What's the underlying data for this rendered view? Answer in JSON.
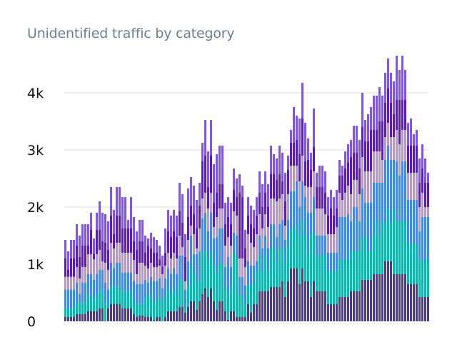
{
  "chart_data": {
    "type": "bar",
    "stacked": true,
    "title": "Unidentified traffic by category",
    "xlabel": "",
    "ylabel": "",
    "ylim": [
      0,
      4700
    ],
    "yticks": [
      0,
      1000,
      2000,
      3000,
      4000
    ],
    "ytick_labels": [
      "0",
      "1k",
      "2k",
      "3k",
      "4k"
    ],
    "grid": "horizontal",
    "legend": "none",
    "series_colors": [
      "#4b3f80",
      "#13b5a8",
      "#4587e6",
      "#b49bc0",
      "#5521b5",
      "#7a5ae0"
    ],
    "values": [
      [
        80,
        150,
        325,
        225,
        325,
        320
      ],
      [
        80,
        150,
        325,
        225,
        125,
        320
      ],
      [
        80,
        150,
        325,
        225,
        325,
        320
      ],
      [
        80,
        150,
        325,
        225,
        325,
        320
      ],
      [
        130,
        200,
        350,
        270,
        375,
        375
      ],
      [
        130,
        200,
        150,
        270,
        375,
        375
      ],
      [
        130,
        200,
        350,
        270,
        375,
        375
      ],
      [
        130,
        200,
        350,
        270,
        375,
        375
      ],
      [
        180,
        275,
        370,
        350,
        150,
        375
      ],
      [
        180,
        275,
        370,
        350,
        425,
        300
      ],
      [
        180,
        200,
        345,
        360,
        90,
        275
      ],
      [
        180,
        275,
        370,
        350,
        425,
        300
      ],
      [
        230,
        300,
        370,
        350,
        350,
        500
      ],
      [
        230,
        300,
        370,
        150,
        350,
        500
      ],
      [
        0,
        305,
        375,
        345,
        350,
        500
      ],
      [
        230,
        75,
        250,
        345,
        350,
        500
      ],
      [
        305,
        300,
        425,
        345,
        475,
        500
      ],
      [
        305,
        300,
        325,
        345,
        250,
        425
      ],
      [
        305,
        300,
        425,
        345,
        475,
        500
      ],
      [
        305,
        300,
        425,
        345,
        475,
        500
      ],
      [
        230,
        300,
        320,
        350,
        425,
        550
      ],
      [
        230,
        300,
        320,
        350,
        425,
        550
      ],
      [
        230,
        300,
        320,
        350,
        425,
        150
      ],
      [
        230,
        300,
        320,
        350,
        425,
        550
      ],
      [
        130,
        225,
        345,
        375,
        325,
        425
      ],
      [
        80,
        225,
        350,
        170,
        425,
        325
      ],
      [
        100,
        205,
        350,
        370,
        375,
        375
      ],
      [
        100,
        205,
        350,
        370,
        375,
        375
      ],
      [
        80,
        325,
        320,
        250,
        225,
        300
      ],
      [
        80,
        375,
        225,
        245,
        400,
        125
      ],
      [
        80,
        375,
        325,
        245,
        250,
        275
      ],
      [
        20,
        310,
        375,
        245,
        250,
        275
      ],
      [
        75,
        300,
        325,
        250,
        250,
        225
      ],
      [
        75,
        350,
        325,
        225,
        110,
        240
      ],
      [
        0,
        350,
        225,
        250,
        135,
        190
      ],
      [
        75,
        350,
        325,
        225,
        225,
        425
      ],
      [
        175,
        400,
        350,
        275,
        375,
        375
      ],
      [
        175,
        300,
        350,
        275,
        375,
        375
      ],
      [
        175,
        400,
        350,
        275,
        375,
        375
      ],
      [
        175,
        300,
        350,
        275,
        375,
        375
      ],
      [
        250,
        475,
        425,
        350,
        425,
        500
      ],
      [
        250,
        475,
        425,
        150,
        425,
        500
      ],
      [
        150,
        75,
        325,
        150,
        425,
        400
      ],
      [
        250,
        375,
        425,
        375,
        400,
        500
      ],
      [
        350,
        650,
        500,
        175,
        350,
        500
      ],
      [
        350,
        500,
        325,
        350,
        350,
        500
      ],
      [
        200,
        475,
        500,
        100,
        350,
        500
      ],
      [
        350,
        375,
        500,
        400,
        400,
        400
      ],
      [
        475,
        750,
        575,
        350,
        650,
        325
      ],
      [
        575,
        650,
        675,
        350,
        650,
        625
      ],
      [
        425,
        650,
        500,
        400,
        375,
        625
      ],
      [
        575,
        650,
        675,
        350,
        650,
        625
      ],
      [
        350,
        625,
        475,
        200,
        425,
        675
      ],
      [
        200,
        650,
        625,
        350,
        425,
        675
      ],
      [
        350,
        650,
        625,
        350,
        425,
        675
      ],
      [
        350,
        650,
        625,
        350,
        425,
        675
      ],
      [
        175,
        400,
        375,
        375,
        375,
        375
      ],
      [
        25,
        425,
        675,
        350,
        350,
        350
      ],
      [
        175,
        425,
        350,
        375,
        375,
        375
      ],
      [
        175,
        1025,
        350,
        375,
        375,
        375
      ],
      [
        75,
        1050,
        375,
        350,
        325,
        325
      ],
      [
        75,
        375,
        325,
        325,
        1150,
        325
      ],
      [
        75,
        375,
        325,
        325,
        1075,
        200
      ],
      [
        75,
        225,
        325,
        325,
        325,
        325
      ],
      [
        300,
        325,
        425,
        475,
        325,
        325
      ],
      [
        150,
        500,
        325,
        400,
        325,
        325
      ],
      [
        300,
        350,
        325,
        325,
        325,
        325
      ],
      [
        300,
        575,
        175,
        475,
        325,
        325
      ],
      [
        525,
        625,
        350,
        375,
        375,
        375
      ],
      [
        525,
        350,
        400,
        350,
        375,
        400
      ],
      [
        525,
        625,
        350,
        375,
        375,
        375
      ],
      [
        525,
        350,
        400,
        375,
        350,
        400
      ],
      [
        600,
        675,
        425,
        450,
        425,
        500
      ],
      [
        600,
        675,
        425,
        450,
        425,
        350
      ],
      [
        600,
        450,
        425,
        625,
        375,
        375
      ],
      [
        600,
        675,
        425,
        450,
        425,
        500
      ],
      [
        700,
        575,
        500,
        450,
        225,
        500
      ],
      [
        425,
        575,
        425,
        250,
        425,
        500
      ],
      [
        700,
        600,
        475,
        450,
        425,
        250
      ],
      [
        925,
        675,
        675,
        450,
        400,
        225
      ],
      [
        925,
        675,
        675,
        450,
        400,
        625
      ],
      [
        925,
        750,
        775,
        275,
        450,
        425
      ],
      [
        650,
        850,
        500,
        450,
        475,
        625
      ],
      [
        925,
        850,
        675,
        450,
        650,
        625
      ],
      [
        700,
        800,
        675,
        200,
        425,
        675
      ],
      [
        700,
        475,
        725,
        450,
        475,
        375
      ],
      [
        425,
        1100,
        375,
        450,
        300,
        300
      ],
      [
        700,
        850,
        625,
        450,
        425,
        675
      ],
      [
        525,
        625,
        350,
        475,
        375,
        250
      ],
      [
        525,
        625,
        350,
        475,
        375,
        375
      ],
      [
        525,
        625,
        350,
        475,
        375,
        375
      ],
      [
        525,
        625,
        350,
        375,
        375,
        375
      ],
      [
        300,
        575,
        325,
        325,
        325,
        325
      ],
      [
        300,
        575,
        325,
        325,
        450,
        325
      ],
      [
        300,
        575,
        325,
        325,
        325,
        325
      ],
      [
        300,
        575,
        325,
        450,
        325,
        325
      ],
      [
        425,
        650,
        750,
        425,
        300,
        275
      ],
      [
        425,
        650,
        750,
        300,
        425,
        175
      ],
      [
        425,
        650,
        750,
        425,
        425,
        300
      ],
      [
        425,
        650,
        800,
        500,
        400,
        325
      ],
      [
        525,
        700,
        525,
        475,
        650,
        300
      ],
      [
        525,
        700,
        775,
        475,
        475,
        475
      ],
      [
        525,
        700,
        775,
        475,
        475,
        475
      ],
      [
        525,
        700,
        525,
        475,
        450,
        500
      ],
      [
        725,
        750,
        850,
        550,
        525,
        600
      ],
      [
        725,
        750,
        600,
        550,
        525,
        375
      ],
      [
        725,
        500,
        850,
        550,
        525,
        475
      ],
      [
        725,
        500,
        850,
        550,
        725,
        400
      ],
      [
        825,
        675,
        925,
        550,
        375,
        600
      ],
      [
        825,
        925,
        675,
        550,
        375,
        600
      ],
      [
        825,
        675,
        925,
        550,
        525,
        600
      ],
      [
        825,
        925,
        675,
        400,
        675,
        450
      ],
      [
        1050,
        675,
        1100,
        400,
        600,
        525
      ],
      [
        1050,
        925,
        1100,
        400,
        600,
        525
      ],
      [
        1050,
        675,
        1100,
        400,
        600,
        525
      ],
      [
        825,
        1125,
        875,
        400,
        400,
        575
      ],
      [
        825,
        925,
        1050,
        550,
        525,
        775
      ],
      [
        825,
        925,
        800,
        550,
        775,
        525
      ],
      [
        825,
        925,
        1050,
        550,
        525,
        775
      ],
      [
        825,
        925,
        1050,
        550,
        525,
        525
      ],
      [
        650,
        700,
        775,
        475,
        475,
        400
      ],
      [
        650,
        700,
        775,
        475,
        475,
        475
      ],
      [
        650,
        700,
        775,
        475,
        475,
        200
      ],
      [
        650,
        700,
        775,
        475,
        475,
        275
      ],
      [
        425,
        650,
        500,
        425,
        425,
        425
      ],
      [
        425,
        650,
        750,
        425,
        425,
        425
      ],
      [
        425,
        650,
        750,
        175,
        425,
        425
      ],
      [
        425,
        650,
        750,
        175,
        425,
        175
      ]
    ]
  }
}
